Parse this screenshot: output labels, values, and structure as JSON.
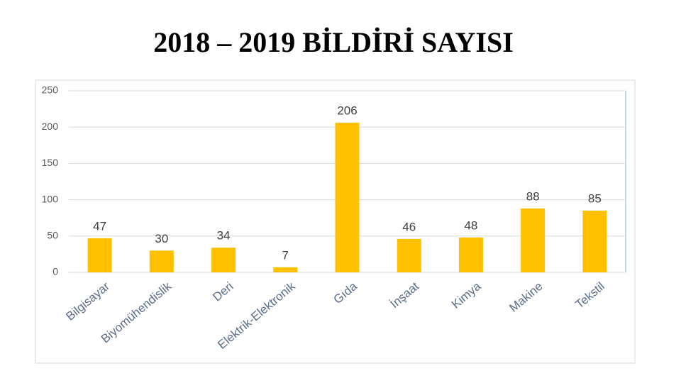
{
  "chart_data": {
    "type": "bar",
    "title": "2018 – 2019 BİLDİRİ SAYISI",
    "categories": [
      "Bilgisayar",
      "Biyomühendislik",
      "Deri",
      "Elektrik-Elektronik",
      "Gıda",
      "İnşaat",
      "Kimya",
      "Makine",
      "Tekstil"
    ],
    "values": [
      47,
      30,
      34,
      7,
      206,
      46,
      48,
      88,
      85
    ],
    "color": "#ffc000",
    "ylim": [
      0,
      250
    ],
    "yticks": [
      0,
      50,
      100,
      150,
      200,
      250
    ],
    "grid": true
  }
}
